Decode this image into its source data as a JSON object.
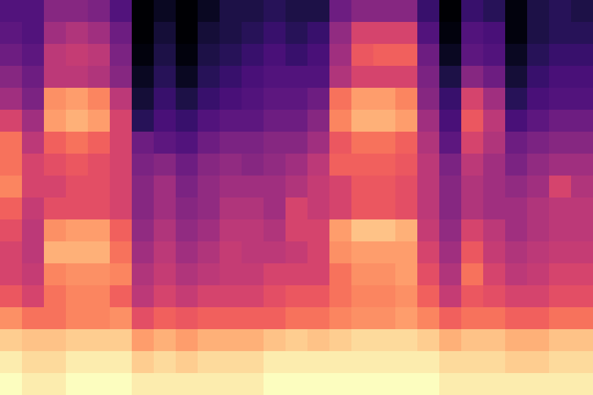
{
  "chart_data": {
    "type": "heatmap",
    "color": "magma",
    "tick_labels": false,
    "cells": [
      [
        30,
        30,
        40,
        40,
        38,
        30,
        10,
        15,
        10,
        15,
        20,
        20,
        22,
        20,
        20,
        35,
        40,
        40,
        40,
        25,
        10,
        25,
        22,
        12,
        20,
        22,
        20
      ],
      [
        32,
        30,
        45,
        48,
        45,
        35,
        10,
        18,
        10,
        18,
        20,
        22,
        25,
        22,
        25,
        42,
        55,
        55,
        55,
        30,
        12,
        30,
        28,
        12,
        20,
        22,
        22
      ],
      [
        35,
        32,
        50,
        52,
        50,
        38,
        12,
        20,
        12,
        20,
        22,
        25,
        28,
        25,
        28,
        45,
        60,
        62,
        62,
        35,
        15,
        32,
        30,
        15,
        22,
        25,
        25
      ],
      [
        40,
        35,
        50,
        50,
        48,
        40,
        15,
        22,
        15,
        22,
        25,
        28,
        30,
        30,
        30,
        48,
        55,
        55,
        55,
        38,
        20,
        40,
        35,
        18,
        25,
        28,
        28
      ],
      [
        45,
        38,
        70,
        72,
        68,
        50,
        18,
        25,
        20,
        25,
        28,
        30,
        32,
        32,
        35,
        65,
        72,
        72,
        68,
        40,
        25,
        55,
        45,
        22,
        28,
        30,
        30
      ],
      [
        55,
        45,
        72,
        75,
        72,
        55,
        22,
        28,
        25,
        30,
        32,
        32,
        35,
        35,
        40,
        68,
        75,
        75,
        72,
        45,
        28,
        60,
        50,
        28,
        32,
        35,
        35
      ],
      [
        65,
        50,
        62,
        65,
        62,
        55,
        35,
        32,
        30,
        35,
        38,
        38,
        40,
        40,
        45,
        60,
        65,
        65,
        62,
        48,
        32,
        55,
        48,
        35,
        38,
        40,
        40
      ],
      [
        65,
        55,
        58,
        60,
        58,
        55,
        38,
        40,
        35,
        40,
        42,
        40,
        42,
        45,
        50,
        62,
        62,
        62,
        60,
        50,
        38,
        50,
        45,
        38,
        42,
        45,
        45
      ],
      [
        68,
        55,
        55,
        58,
        58,
        55,
        40,
        45,
        38,
        42,
        45,
        45,
        45,
        48,
        52,
        55,
        60,
        60,
        58,
        50,
        40,
        48,
        45,
        42,
        45,
        55,
        48
      ],
      [
        62,
        52,
        58,
        58,
        58,
        55,
        40,
        45,
        40,
        42,
        48,
        48,
        45,
        55,
        52,
        55,
        60,
        60,
        58,
        50,
        40,
        48,
        45,
        45,
        48,
        50,
        50
      ],
      [
        58,
        50,
        70,
        72,
        72,
        62,
        42,
        48,
        42,
        45,
        50,
        50,
        48,
        55,
        55,
        72,
        78,
        78,
        75,
        52,
        42,
        55,
        50,
        45,
        48,
        50,
        50
      ],
      [
        55,
        50,
        75,
        75,
        75,
        65,
        45,
        50,
        45,
        48,
        52,
        50,
        50,
        52,
        55,
        70,
        72,
        72,
        72,
        55,
        45,
        60,
        52,
        48,
        50,
        52,
        52
      ],
      [
        55,
        52,
        68,
        70,
        70,
        68,
        48,
        52,
        48,
        50,
        52,
        52,
        55,
        55,
        55,
        65,
        70,
        70,
        72,
        58,
        48,
        65,
        55,
        50,
        52,
        55,
        55
      ],
      [
        60,
        55,
        65,
        68,
        68,
        62,
        50,
        55,
        52,
        55,
        55,
        55,
        58,
        60,
        60,
        65,
        68,
        68,
        70,
        62,
        52,
        60,
        58,
        55,
        55,
        58,
        58
      ],
      [
        70,
        65,
        65,
        68,
        68,
        70,
        58,
        62,
        60,
        62,
        62,
        62,
        62,
        65,
        65,
        68,
        70,
        70,
        72,
        68,
        62,
        65,
        65,
        62,
        62,
        65,
        65
      ],
      [
        80,
        78,
        78,
        80,
        80,
        80,
        72,
        75,
        72,
        75,
        75,
        75,
        78,
        80,
        78,
        80,
        82,
        82,
        82,
        80,
        75,
        78,
        78,
        75,
        75,
        78,
        78
      ],
      [
        85,
        82,
        82,
        85,
        85,
        85,
        80,
        82,
        80,
        82,
        82,
        82,
        85,
        85,
        85,
        85,
        85,
        85,
        85,
        85,
        82,
        82,
        82,
        80,
        80,
        82,
        82
      ],
      [
        88,
        85,
        85,
        88,
        88,
        88,
        85,
        85,
        85,
        85,
        85,
        85,
        88,
        88,
        88,
        88,
        88,
        88,
        88,
        88,
        85,
        85,
        85,
        85,
        85,
        85,
        85
      ]
    ]
  }
}
